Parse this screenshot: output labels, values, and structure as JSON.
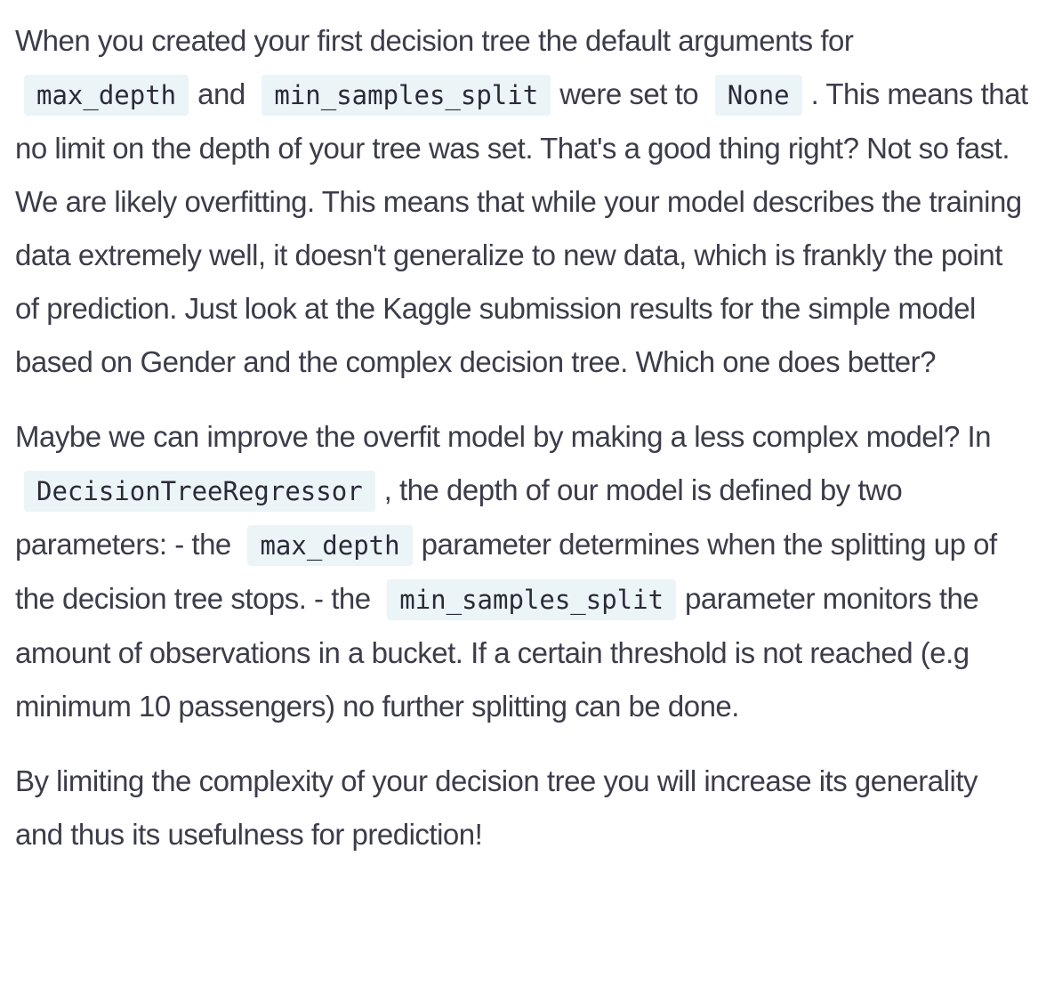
{
  "paragraphs": [
    {
      "s1": "When you created your first decision tree the default arguments for",
      "c1": "max_depth",
      "s2": "and",
      "c2": "min_samples_split",
      "s3": "were set to",
      "c3": "None",
      "s4": ". This means that no limit on the depth of your tree was set. That's a good thing right? Not so fast. We are likely overfitting. This means that while your model describes the training data extremely well, it doesn't generalize to new data, which is frankly the point of prediction. Just look at the Kaggle submission results for the simple model based on Gender and the complex decision tree. Which one does better?"
    },
    {
      "s1": "Maybe we can improve the overfit model by making a less complex model? In",
      "c1": "DecisionTreeRegressor",
      "s2": ", the depth of our model is defined by two parameters: - the",
      "c2": "max_depth",
      "s3": "parameter determines when the splitting up of the decision tree stops. - the",
      "c3": "min_samples_split",
      "s4": "parameter monitors the amount of observations in a bucket. If a certain threshold is not reached (e.g minimum 10 passengers) no further splitting can be done."
    },
    {
      "s1": "By limiting the complexity of your decision tree you will increase its generality and thus its usefulness for prediction!"
    }
  ]
}
